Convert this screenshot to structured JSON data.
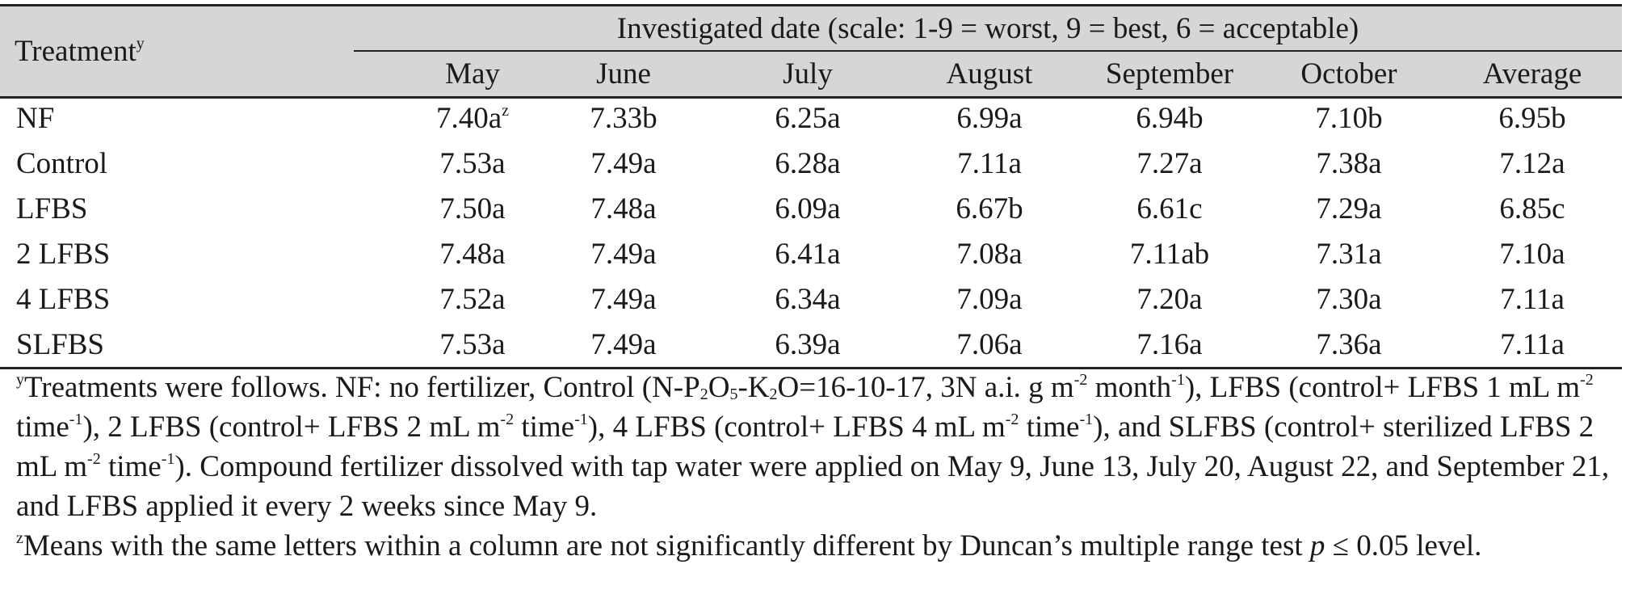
{
  "table": {
    "treatment_header": "Treatment",
    "treatment_header_mark": "y",
    "span_header": "Investigated date (scale: 1-9 = worst, 9 = best, 6 = acceptable)",
    "columns": [
      "May",
      "June",
      "July",
      "August",
      "September",
      "October",
      "Average"
    ],
    "first_cell_mark": "z",
    "rows": [
      {
        "treatment": "NF",
        "values": [
          "7.40a",
          "7.33b",
          "6.25a",
          "6.99a",
          "6.94b",
          "7.10b",
          "6.95b"
        ]
      },
      {
        "treatment": "Control",
        "values": [
          "7.53a",
          "7.49a",
          "6.28a",
          "7.11a",
          "7.27a",
          "7.38a",
          "7.12a"
        ]
      },
      {
        "treatment": "LFBS",
        "values": [
          "7.50a",
          "7.48a",
          "6.09a",
          "6.67b",
          "6.61c",
          "7.29a",
          "6.85c"
        ]
      },
      {
        "treatment": "2 LFBS",
        "values": [
          "7.48a",
          "7.49a",
          "6.41a",
          "7.08a",
          "7.11ab",
          "7.31a",
          "7.10a"
        ]
      },
      {
        "treatment": "4 LFBS",
        "values": [
          "7.52a",
          "7.49a",
          "6.34a",
          "7.09a",
          "7.20a",
          "7.30a",
          "7.11a"
        ]
      },
      {
        "treatment": "SLFBS",
        "values": [
          "7.53a",
          "7.49a",
          "6.39a",
          "7.06a",
          "7.16a",
          "7.36a",
          "7.11a"
        ]
      }
    ]
  },
  "footnotes": {
    "y": {
      "mark": "y",
      "p1": "Treatments were follows. NF: no fertilizer, Control (N-P",
      "sub1": "2",
      "p2": "O",
      "sub2": "5",
      "p3": "-K",
      "sub3": "2",
      "p4": "O=16-10-17, 3N a.i. g m",
      "sup1": "-2",
      "p5": " month",
      "sup2": "-1",
      "p6": "), LFBS (control+ LFBS 1 mL m",
      "sup3": "-2",
      "p7": " time",
      "sup4": "-1",
      "p8": "), 2 LFBS (control+ LFBS 2 mL m",
      "sup5": "-2",
      "p9": " time",
      "sup6": "-1",
      "p10": "), 4 LFBS (control+ LFBS 4 mL m",
      "sup7": "-2",
      "p11": " time",
      "sup8": "-1",
      "p12": "), and SLFBS (control+ sterilized LFBS 2 mL m",
      "sup9": "-2",
      "p13": " time",
      "sup10": "-1",
      "p14": "). Compound fertilizer dissolved with tap water were applied on May 9, June 13, July 20, August 22, and September 21, and LFBS applied it every 2 weeks since May 9."
    },
    "z": {
      "mark": "z",
      "p1": "Means with the same letters within a column are not significantly different by Duncan’s multiple range test ",
      "p_italic": "p",
      "p2": " ≤ 0.05 level."
    }
  }
}
